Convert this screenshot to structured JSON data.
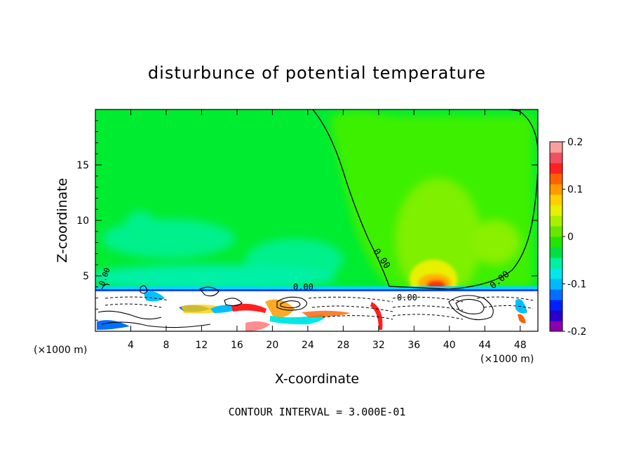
{
  "chart_data": {
    "type": "heatmap",
    "title": "disturbunce of potential temperature",
    "xlabel": "X-coordinate",
    "ylabel": "Z-coordinate",
    "x_unit": "(×1000 m)",
    "x_ticks": [
      4,
      8,
      12,
      16,
      20,
      24,
      28,
      32,
      36,
      40,
      44,
      48
    ],
    "y_ticks": [
      5,
      10,
      15
    ],
    "xlim": [
      0,
      50
    ],
    "ylim": [
      0,
      20
    ],
    "colorbar": {
      "ticks": [
        "0.2",
        "0.1",
        "0",
        "-0.1",
        "-0.2"
      ],
      "range": [
        -0.2,
        0.2
      ],
      "colors": [
        "#8b00b0",
        "#2a00c8",
        "#0020ff",
        "#0070ff",
        "#00b8ff",
        "#00e8e8",
        "#00f0a0",
        "#00e040",
        "#22e400",
        "#66e800",
        "#aaee00",
        "#e6f000",
        "#ffd000",
        "#ff9a00",
        "#ff6000",
        "#ff2020",
        "#f05060",
        "#f8a0a0"
      ]
    },
    "contour_labels": [
      "0.00",
      "0.00",
      "0.00",
      "0.00",
      "0.00"
    ],
    "footer": "CONTOUR INTERVAL = 3.000E-01"
  }
}
